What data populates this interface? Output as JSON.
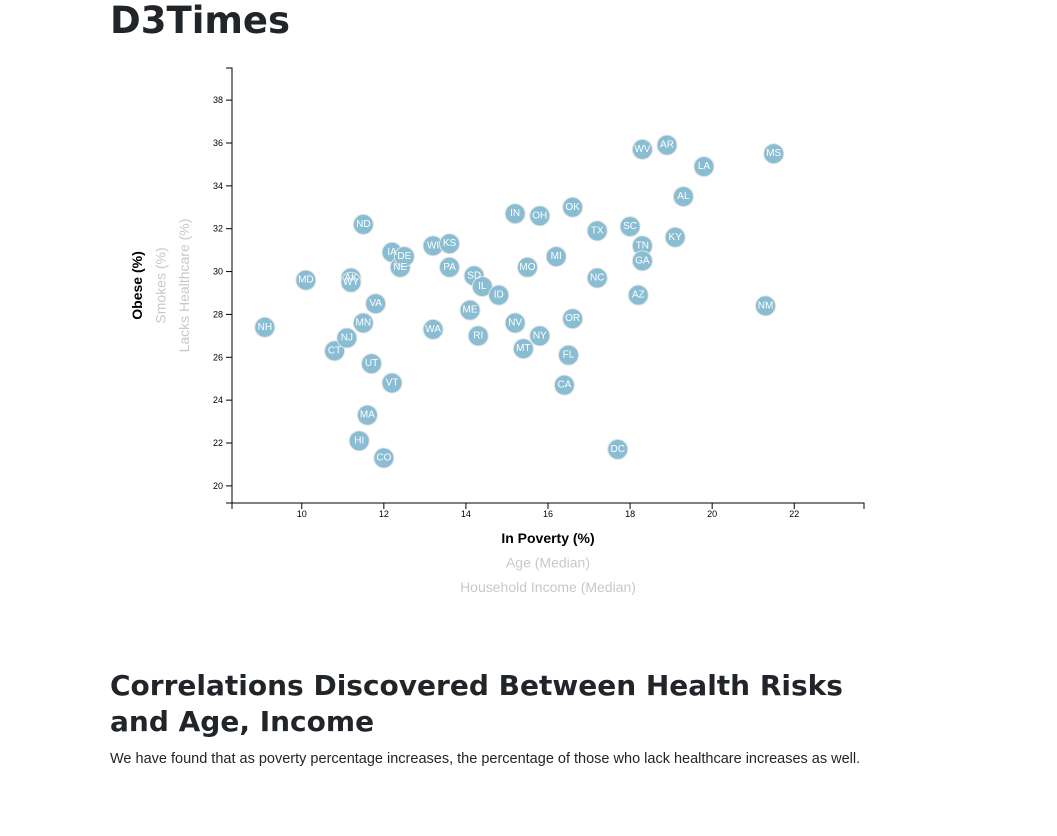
{
  "page": {
    "title": "D3Times",
    "section_title": "Correlations Discovered Between Health Risks and Age, Income",
    "section_text": "We have found that as poverty percentage increases, the percentage of those who lack healthcare increases as well."
  },
  "chart_data": {
    "type": "scatter",
    "xlim": [
      8.3,
      23.7
    ],
    "ylim": [
      19.2,
      39.5
    ],
    "x_ticks": [
      10,
      12,
      14,
      16,
      18,
      20,
      22
    ],
    "y_ticks": [
      20,
      22,
      24,
      26,
      28,
      30,
      32,
      34,
      36,
      38
    ],
    "x_axis_labels": [
      {
        "text": "In Poverty (%)",
        "active": true
      },
      {
        "text": "Age (Median)",
        "active": false
      },
      {
        "text": "Household Income (Median)",
        "active": false
      }
    ],
    "y_axis_labels": [
      {
        "text": "Obese (%)",
        "active": true
      },
      {
        "text": "Smokes (%)",
        "active": false
      },
      {
        "text": "Lacks Healthcare (%)",
        "active": false
      }
    ],
    "marker_color": "#89bdd3",
    "points": [
      {
        "abbr": "NH",
        "x": 9.1,
        "y": 27.4
      },
      {
        "abbr": "MD",
        "x": 10.1,
        "y": 29.6
      },
      {
        "abbr": "CT",
        "x": 10.8,
        "y": 26.3
      },
      {
        "abbr": "NJ",
        "x": 11.1,
        "y": 26.9
      },
      {
        "abbr": "AK",
        "x": 11.2,
        "y": 29.7
      },
      {
        "abbr": "WY",
        "x": 11.2,
        "y": 29.5
      },
      {
        "abbr": "HI",
        "x": 11.4,
        "y": 22.1
      },
      {
        "abbr": "ND",
        "x": 11.5,
        "y": 32.2
      },
      {
        "abbr": "MN",
        "x": 11.5,
        "y": 27.6
      },
      {
        "abbr": "MA",
        "x": 11.6,
        "y": 23.3
      },
      {
        "abbr": "UT",
        "x": 11.7,
        "y": 25.7
      },
      {
        "abbr": "VA",
        "x": 11.8,
        "y": 28.5
      },
      {
        "abbr": "CO",
        "x": 12.0,
        "y": 21.3
      },
      {
        "abbr": "IA",
        "x": 12.2,
        "y": 30.9
      },
      {
        "abbr": "VT",
        "x": 12.2,
        "y": 24.8
      },
      {
        "abbr": "NE",
        "x": 12.4,
        "y": 30.2
      },
      {
        "abbr": "DE",
        "x": 12.5,
        "y": 30.7
      },
      {
        "abbr": "WI",
        "x": 13.2,
        "y": 31.2
      },
      {
        "abbr": "WA",
        "x": 13.2,
        "y": 27.3
      },
      {
        "abbr": "KS",
        "x": 13.6,
        "y": 31.3
      },
      {
        "abbr": "PA",
        "x": 13.6,
        "y": 30.2
      },
      {
        "abbr": "ME",
        "x": 14.1,
        "y": 28.2
      },
      {
        "abbr": "SD",
        "x": 14.2,
        "y": 29.8
      },
      {
        "abbr": "RI",
        "x": 14.3,
        "y": 27.0
      },
      {
        "abbr": "IL",
        "x": 14.4,
        "y": 29.3
      },
      {
        "abbr": "ID",
        "x": 14.8,
        "y": 28.9
      },
      {
        "abbr": "NV",
        "x": 15.2,
        "y": 27.6
      },
      {
        "abbr": "IN",
        "x": 15.2,
        "y": 32.7
      },
      {
        "abbr": "MT",
        "x": 15.4,
        "y": 26.4
      },
      {
        "abbr": "MO",
        "x": 15.5,
        "y": 30.2
      },
      {
        "abbr": "OH",
        "x": 15.8,
        "y": 32.6
      },
      {
        "abbr": "NY",
        "x": 15.8,
        "y": 27.0
      },
      {
        "abbr": "MI",
        "x": 16.2,
        "y": 30.7
      },
      {
        "abbr": "CA",
        "x": 16.4,
        "y": 24.7
      },
      {
        "abbr": "FL",
        "x": 16.5,
        "y": 26.1
      },
      {
        "abbr": "OK",
        "x": 16.6,
        "y": 33.0
      },
      {
        "abbr": "OR",
        "x": 16.6,
        "y": 27.8
      },
      {
        "abbr": "TX",
        "x": 17.2,
        "y": 31.9
      },
      {
        "abbr": "NC",
        "x": 17.2,
        "y": 29.7
      },
      {
        "abbr": "DC",
        "x": 17.7,
        "y": 21.7
      },
      {
        "abbr": "SC",
        "x": 18.0,
        "y": 32.1
      },
      {
        "abbr": "AZ",
        "x": 18.2,
        "y": 28.9
      },
      {
        "abbr": "WV",
        "x": 18.3,
        "y": 35.7
      },
      {
        "abbr": "TN",
        "x": 18.3,
        "y": 31.2
      },
      {
        "abbr": "GA",
        "x": 18.3,
        "y": 30.5
      },
      {
        "abbr": "AR",
        "x": 18.9,
        "y": 35.9
      },
      {
        "abbr": "KY",
        "x": 19.1,
        "y": 31.6
      },
      {
        "abbr": "AL",
        "x": 19.3,
        "y": 33.5
      },
      {
        "abbr": "LA",
        "x": 19.8,
        "y": 34.9
      },
      {
        "abbr": "NM",
        "x": 21.3,
        "y": 28.4
      },
      {
        "abbr": "MS",
        "x": 21.5,
        "y": 35.5
      }
    ]
  }
}
